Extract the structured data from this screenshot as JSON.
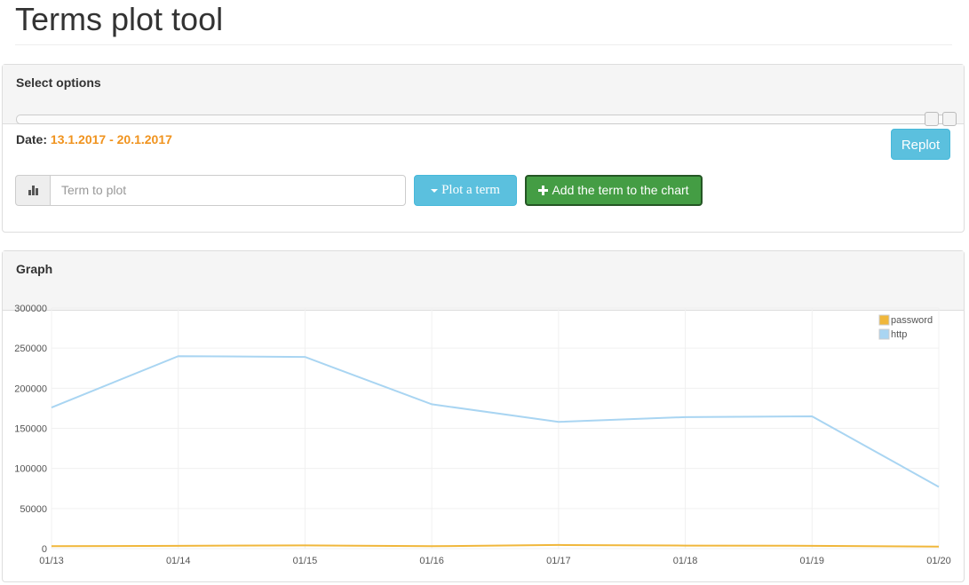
{
  "header": {
    "title": "Terms plot tool"
  },
  "options_panel": {
    "heading": "Select options",
    "date_label": "Date:",
    "date_range": "13.1.2017 - 20.1.2017",
    "replot_button": "Replot",
    "term_placeholder": "Term to plot",
    "plot_button": "Plot a term",
    "add_button": "Add the term to the chart"
  },
  "graph_panel": {
    "heading": "Graph"
  },
  "chart_data": {
    "type": "line",
    "categories": [
      "01/13",
      "01/14",
      "01/15",
      "01/16",
      "01/17",
      "01/18",
      "01/19",
      "01/20"
    ],
    "series": [
      {
        "name": "password",
        "color": "#f0b73b",
        "values": [
          3000,
          3500,
          4000,
          3000,
          4500,
          3800,
          3500,
          2500
        ]
      },
      {
        "name": "http",
        "color": "#a9d5f2",
        "values": [
          176000,
          240000,
          239000,
          180000,
          158000,
          164000,
          165000,
          77000
        ]
      }
    ],
    "ylim": [
      0,
      300000
    ],
    "yticks": [
      0,
      50000,
      100000,
      150000,
      200000,
      250000,
      300000
    ],
    "grid": true,
    "legend": "top-right"
  }
}
